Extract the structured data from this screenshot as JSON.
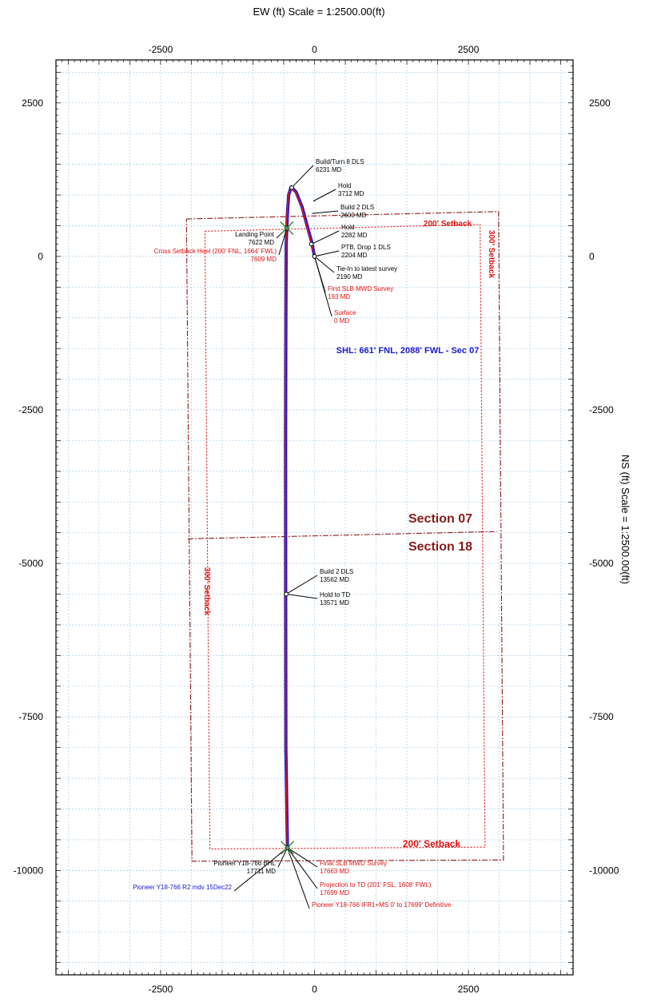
{
  "chart_data": {
    "type": "line",
    "title": "EW (ft) Scale = 1:2500.00(ft)",
    "xlabel": "EW (ft) Scale = 1:2500.00(ft)",
    "ylabel": "NS (ft) Scale = 1:2500.00(ft)",
    "xlim": [
      -4200,
      4200
    ],
    "ylim": [
      -11700,
      3200
    ],
    "xticks": [
      -2500,
      0,
      2500
    ],
    "yticks": [
      2500,
      0,
      -2500,
      -5000,
      -7500,
      -10000
    ],
    "grid": true,
    "series": [
      {
        "name": "Pioneer Y18-766 R2 mdv 15Dec22",
        "color": "#1a1acc",
        "x": [
          0,
          -20,
          -50,
          -120,
          -200,
          -300,
          -380,
          -420,
          -440,
          -450,
          -460,
          -465,
          -470,
          -468,
          -465,
          -440
        ],
        "y": [
          0,
          100,
          250,
          500,
          800,
          1050,
          1130,
          1000,
          700,
          460,
          200,
          -1000,
          -3000,
          -5500,
          -8000,
          -9630
        ]
      },
      {
        "name": "Pioneer Y18-766 IFR1+MS 0' to 17699' Definitive",
        "color": "#e01010",
        "x": [
          0,
          -22,
          -55,
          -125,
          -205,
          -305,
          -385,
          -425,
          -445,
          -455,
          -465,
          -470,
          -475,
          -470,
          -468,
          -442
        ],
        "y": [
          0,
          95,
          245,
          495,
          795,
          1045,
          1125,
          995,
          695,
          455,
          195,
          -1005,
          -3005,
          -5505,
          -8005,
          -9635
        ]
      }
    ],
    "annotations": [
      {
        "lines": [
          "Build/Turn 8 DLS",
          "6231 MD"
        ],
        "color": "#000000",
        "x": -370,
        "y": 1120
      },
      {
        "lines": [
          "Hold",
          "3712 MD"
        ],
        "color": "#000000",
        "x": -20,
        "y": 900
      },
      {
        "lines": [
          "Build 2 DLS",
          "2600 MD"
        ],
        "color": "#000000",
        "x": -40,
        "y": 700
      },
      {
        "lines": [
          "Hold",
          "2282 MD"
        ],
        "color": "#000000",
        "x": -50,
        "y": 200
      },
      {
        "lines": [
          "PTB, Drop 1 DLS",
          "2204 MD"
        ],
        "color": "#000000",
        "x": 0,
        "y": 0
      },
      {
        "lines": [
          "Tie-In to latest survey",
          "2190 MD"
        ],
        "color": "#000000",
        "x": 0,
        "y": 0
      },
      {
        "lines": [
          "First SLB MWD Survey",
          "193 MD"
        ],
        "color": "#e01010",
        "x": 0,
        "y": 0
      },
      {
        "lines": [
          "Surface",
          "0 MD"
        ],
        "color": "#e01010",
        "x": 0,
        "y": 0
      },
      {
        "lines": [
          "Landing Point",
          "7622 MD"
        ],
        "color": "#000000",
        "x": -450,
        "y": 460
      },
      {
        "lines": [
          "Cross Setback Heel (200' FNL, 1664' FWL)",
          "7609 MD"
        ],
        "color": "#e01010",
        "x": -450,
        "y": 460
      },
      {
        "lines": [
          "Build 2 DLS",
          "13562 MD"
        ],
        "color": "#000000",
        "x": -460,
        "y": -5500
      },
      {
        "lines": [
          "Hold to TD",
          "13571 MD"
        ],
        "color": "#000000",
        "x": -460,
        "y": -5500
      },
      {
        "lines": [
          "Pioneer Y18-766 BHL",
          "17711 MD"
        ],
        "color": "#000000",
        "x": -440,
        "y": -9630
      },
      {
        "lines": [
          "Final SLB MWD Survey",
          "17663 MD"
        ],
        "color": "#e01010",
        "x": -440,
        "y": -9630
      },
      {
        "lines": [
          "Projection to TD (201' FSL, 1608' FWL)",
          "17699 MD"
        ],
        "color": "#e01010",
        "x": -440,
        "y": -9630
      },
      {
        "lines": [
          "Pioneer Y18-766 IFR1+MS 0' to 17699' Definitive"
        ],
        "color": "#e01010",
        "x": -440,
        "y": -9630
      },
      {
        "lines": [
          "Pioneer Y18-766 R2 mdv 15Dec22"
        ],
        "color": "#1a1acc",
        "x": -440,
        "y": -9630
      }
    ],
    "labels": {
      "shl": "SHL: 661' FNL, 2088' FWL - Sec 07",
      "section_upper": "Section 07",
      "section_lower": "Section 18",
      "setback_200_top": "200' Setback",
      "setback_200_bottom": "200' Setback",
      "setback_300_right": "300' Setback",
      "setback_300_left": "300' Setback"
    },
    "colors": {
      "grid": "#a9cdea",
      "section_line": "#8b1a1a",
      "setback": "#e01010",
      "wellpath_outer": "#e01010",
      "wellpath_inner": "#1a1acc",
      "marker": "#2e8b2e"
    }
  }
}
